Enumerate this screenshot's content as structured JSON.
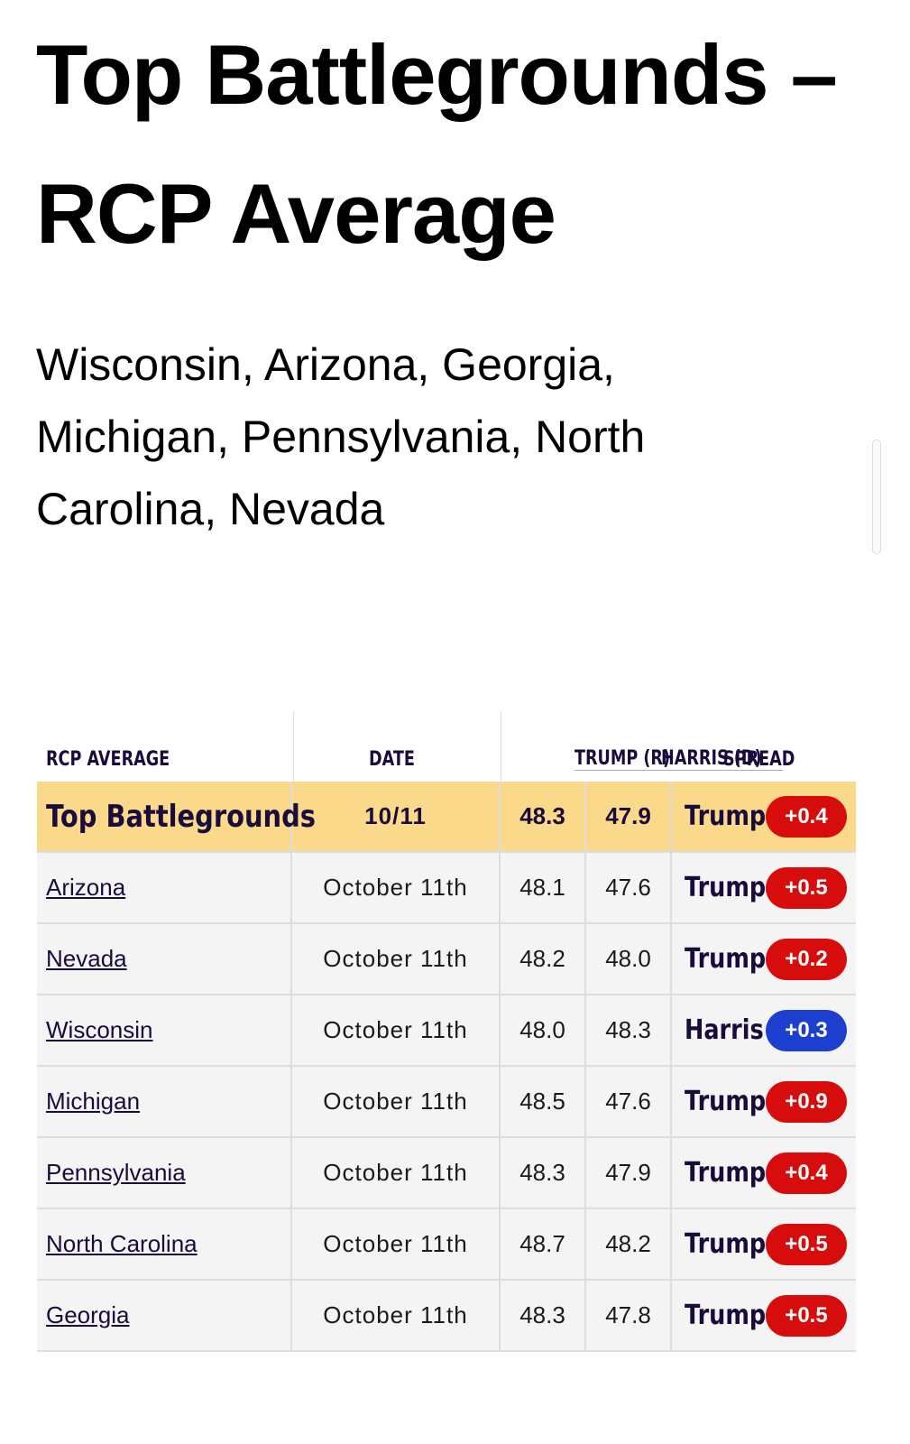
{
  "header": {
    "title": "Top Battlegrounds – RCP Average",
    "subtitle": "Wisconsin, Arizona, Georgia, Michigan, Pennsylvania, North Carolina, Nevada"
  },
  "table": {
    "columns": [
      "RCP AVERAGE",
      "DATE",
      "TRUMP (R)",
      "HARRIS (D)",
      "SPREAD"
    ],
    "rows": [
      {
        "name": "Top Battlegrounds",
        "date": "10/11",
        "trump": "48.3",
        "harris": "47.9",
        "leader": "Trump",
        "spread": "+0.4",
        "color": "#d70d0d"
      },
      {
        "name": "Arizona",
        "date": "October 11th",
        "trump": "48.1",
        "harris": "47.6",
        "leader": "Trump",
        "spread": "+0.5",
        "color": "#d70d0d"
      },
      {
        "name": "Nevada",
        "date": "October 11th",
        "trump": "48.2",
        "harris": "48.0",
        "leader": "Trump",
        "spread": "+0.2",
        "color": "#d70d0d"
      },
      {
        "name": "Wisconsin",
        "date": "October 11th",
        "trump": "48.0",
        "harris": "48.3",
        "leader": "Harris",
        "spread": "+0.3",
        "color": "#1d3fcf"
      },
      {
        "name": "Michigan",
        "date": "October 11th",
        "trump": "48.5",
        "harris": "47.6",
        "leader": "Trump",
        "spread": "+0.9",
        "color": "#d70d0d"
      },
      {
        "name": "Pennsylvania",
        "date": "October 11th",
        "trump": "48.3",
        "harris": "47.9",
        "leader": "Trump",
        "spread": "+0.4",
        "color": "#d70d0d"
      },
      {
        "name": "North Carolina",
        "date": "October 11th",
        "trump": "48.7",
        "harris": "48.2",
        "leader": "Trump",
        "spread": "+0.5",
        "color": "#d70d0d"
      },
      {
        "name": "Georgia",
        "date": "October 11th",
        "trump": "48.3",
        "harris": "47.8",
        "leader": "Trump",
        "spread": "+0.5",
        "color": "#d70d0d"
      }
    ]
  }
}
